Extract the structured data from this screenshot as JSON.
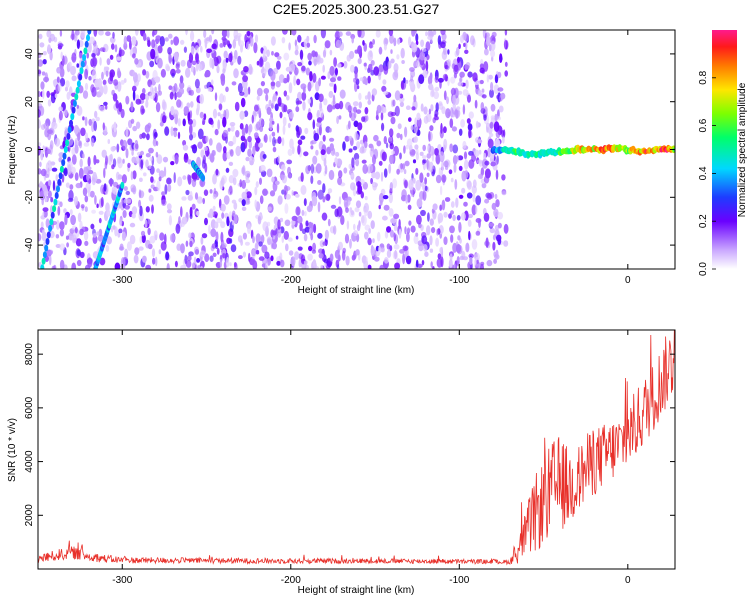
{
  "figure_title": "C2E5.2025.300.23.51.G27",
  "chart_data": [
    {
      "type": "heatmap",
      "title": "C2E5.2025.300.23.51.G27",
      "xlabel": "Height of straight line (km)",
      "ylabel": "Frequency (Hz)",
      "xlim": [
        -350,
        28
      ],
      "ylim": [
        -50,
        50
      ],
      "x_ticks": [
        -300,
        -200,
        -100,
        0
      ],
      "x_tick_labels": [
        "-300",
        "-200",
        "-100",
        "0"
      ],
      "y_ticks": [
        -40,
        -20,
        0,
        20,
        40
      ],
      "y_tick_labels": [
        "-40",
        "-20",
        "0",
        "20",
        "40"
      ],
      "noise_region_x": [
        -350,
        -72
      ],
      "signal_track": {
        "x": [
          -80,
          -72,
          -65,
          -60,
          -55,
          -50,
          -45,
          -40,
          -35,
          -30,
          -25,
          -20,
          -15,
          -10,
          -5,
          0,
          5,
          10,
          15,
          20,
          25,
          28
        ],
        "y": [
          0,
          0,
          -1,
          -2,
          -2,
          -1.5,
          -1,
          -1,
          -0.5,
          0,
          0,
          0,
          0,
          0.5,
          0.5,
          0,
          -0.5,
          -1,
          0,
          0,
          0,
          0
        ],
        "amplitude": [
          0.35,
          0.55,
          0.65,
          0.5,
          0.55,
          0.6,
          0.55,
          0.65,
          0.7,
          0.8,
          0.9,
          0.85,
          0.95,
          0.9,
          0.8,
          0.75,
          0.85,
          0.95,
          0.9,
          0.95,
          1.0,
          0.6
        ]
      },
      "streaks": [
        {
          "x": [
            -349,
            -318
          ],
          "y": [
            -55,
            55
          ]
        },
        {
          "x": [
            -316,
            -300
          ],
          "y": [
            -50,
            -15
          ]
        },
        {
          "x": [
            -258,
            -252
          ],
          "y": [
            -6,
            -12
          ]
        }
      ],
      "colorbar": {
        "label": "Normalized spectral amplitude",
        "range": [
          0,
          1
        ],
        "ticks": [
          0.0,
          0.2,
          0.4,
          0.6,
          0.8
        ],
        "tick_labels": [
          "0.0",
          "0.2",
          "0.4",
          "0.6",
          "0.8"
        ]
      }
    },
    {
      "type": "line",
      "title": "",
      "xlabel": "Height of straight line (km)",
      "ylabel": "SNR (10 * v/v)",
      "xlim": [
        -350,
        28
      ],
      "ylim": [
        0,
        8900
      ],
      "x_ticks": [
        -300,
        -200,
        -100,
        0
      ],
      "x_tick_labels": [
        "-300",
        "-200",
        "-100",
        "0"
      ],
      "y_ticks": [
        2000,
        4000,
        6000,
        8000
      ],
      "y_tick_labels": [
        "2000",
        "4000",
        "6000",
        "8000"
      ],
      "color": "#e8302a",
      "series": [
        {
          "name": "SNR",
          "x": [
            -350,
            -340,
            -330,
            -320,
            -310,
            -300,
            -250,
            -200,
            -150,
            -100,
            -80,
            -70,
            -65,
            -60,
            -55,
            -50,
            -45,
            -40,
            -35,
            -30,
            -25,
            -20,
            -15,
            -10,
            -5,
            0,
            5,
            10,
            15,
            20,
            25,
            28
          ],
          "y": [
            380,
            500,
            620,
            470,
            380,
            330,
            310,
            300,
            300,
            280,
            270,
            260,
            700,
            1400,
            2000,
            2500,
            3000,
            3200,
            3000,
            3300,
            3700,
            4000,
            4200,
            4400,
            4600,
            5000,
            5400,
            5900,
            6400,
            7000,
            7600,
            7800
          ],
          "noise_amplitude": [
            150,
            200,
            250,
            180,
            150,
            120,
            100,
            100,
            90,
            90,
            80,
            80,
            500,
            900,
            1500,
            1600,
            1800,
            1800,
            1500,
            1300,
            1300,
            1300,
            1200,
            1200,
            1200,
            1200,
            1300,
            1300,
            1300,
            1400,
            1400,
            1200
          ]
        }
      ]
    }
  ]
}
